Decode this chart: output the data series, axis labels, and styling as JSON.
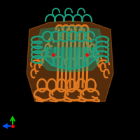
{
  "background_color": "#000000",
  "teal_color": "#1a9e7e",
  "orange_color": "#e07820",
  "red_dot_color": "#ff0000",
  "axis_green": "#00cc00",
  "axis_blue": "#0055ff",
  "axis_red": "#ff0000",
  "figsize": [
    2.0,
    2.0
  ],
  "dpi": 100
}
